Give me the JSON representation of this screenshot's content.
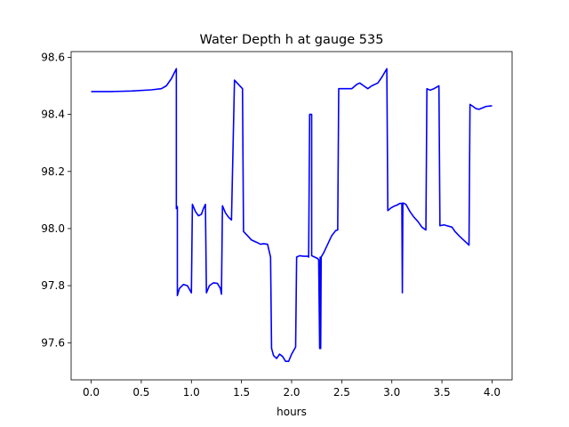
{
  "chart_data": {
    "type": "line",
    "title": "Water Depth h at gauge 535",
    "xlabel": "hours",
    "ylabel": "",
    "xlim": [
      -0.2,
      4.2
    ],
    "ylim": [
      97.47,
      98.62
    ],
    "xticks": [
      0.0,
      0.5,
      1.0,
      1.5,
      2.0,
      2.5,
      3.0,
      3.5,
      4.0
    ],
    "xtick_labels": [
      "0.0",
      "0.5",
      "1.0",
      "1.5",
      "2.0",
      "2.5",
      "3.0",
      "3.5",
      "4.0"
    ],
    "yticks": [
      97.6,
      97.8,
      98.0,
      98.2,
      98.4,
      98.6
    ],
    "ytick_labels": [
      "97.6",
      "97.8",
      "98.0",
      "98.2",
      "98.4",
      "98.6"
    ],
    "grid": false,
    "legend": "none",
    "series": [
      {
        "color": "#0000ff",
        "points": [
          [
            0.0,
            98.48
          ],
          [
            0.2,
            98.48
          ],
          [
            0.4,
            98.482
          ],
          [
            0.6,
            98.486
          ],
          [
            0.7,
            98.49
          ],
          [
            0.75,
            98.5
          ],
          [
            0.8,
            98.525
          ],
          [
            0.85,
            98.56
          ],
          [
            0.85,
            98.07
          ],
          [
            0.86,
            98.077
          ],
          [
            0.86,
            97.765
          ],
          [
            0.88,
            97.79
          ],
          [
            0.92,
            97.804
          ],
          [
            0.96,
            97.8
          ],
          [
            1.0,
            97.775
          ],
          [
            1.01,
            98.085
          ],
          [
            1.04,
            98.06
          ],
          [
            1.07,
            98.045
          ],
          [
            1.1,
            98.05
          ],
          [
            1.12,
            98.07
          ],
          [
            1.14,
            98.085
          ],
          [
            1.15,
            97.775
          ],
          [
            1.18,
            97.8
          ],
          [
            1.22,
            97.81
          ],
          [
            1.26,
            97.808
          ],
          [
            1.29,
            97.79
          ],
          [
            1.3,
            97.77
          ],
          [
            1.31,
            98.08
          ],
          [
            1.34,
            98.055
          ],
          [
            1.37,
            98.04
          ],
          [
            1.4,
            98.03
          ],
          [
            1.43,
            98.52
          ],
          [
            1.47,
            98.505
          ],
          [
            1.51,
            98.49
          ],
          [
            1.52,
            97.99
          ],
          [
            1.56,
            97.975
          ],
          [
            1.6,
            97.96
          ],
          [
            1.65,
            97.952
          ],
          [
            1.69,
            97.945
          ],
          [
            1.72,
            97.947
          ],
          [
            1.76,
            97.945
          ],
          [
            1.79,
            97.9
          ],
          [
            1.8,
            97.58
          ],
          [
            1.82,
            97.555
          ],
          [
            1.85,
            97.545
          ],
          [
            1.88,
            97.56
          ],
          [
            1.91,
            97.552
          ],
          [
            1.94,
            97.535
          ],
          [
            1.97,
            97.535
          ],
          [
            2.0,
            97.56
          ],
          [
            2.04,
            97.585
          ],
          [
            2.05,
            97.9
          ],
          [
            2.08,
            97.905
          ],
          [
            2.12,
            97.903
          ],
          [
            2.16,
            97.903
          ],
          [
            2.17,
            97.9
          ],
          [
            2.18,
            98.4
          ],
          [
            2.2,
            98.4
          ],
          [
            2.2,
            97.905
          ],
          [
            2.23,
            97.9
          ],
          [
            2.26,
            97.895
          ],
          [
            2.27,
            97.89
          ],
          [
            2.28,
            97.58
          ],
          [
            2.285,
            97.9
          ],
          [
            2.29,
            97.58
          ],
          [
            2.295,
            97.9
          ],
          [
            2.32,
            97.915
          ],
          [
            2.36,
            97.945
          ],
          [
            2.4,
            97.975
          ],
          [
            2.44,
            97.993
          ],
          [
            2.46,
            97.995
          ],
          [
            2.47,
            98.49
          ],
          [
            2.55,
            98.49
          ],
          [
            2.6,
            98.49
          ],
          [
            2.65,
            98.505
          ],
          [
            2.68,
            98.51
          ],
          [
            2.72,
            98.5
          ],
          [
            2.76,
            98.49
          ],
          [
            2.8,
            98.5
          ],
          [
            2.86,
            98.51
          ],
          [
            2.9,
            98.53
          ],
          [
            2.95,
            98.56
          ],
          [
            2.96,
            98.063
          ],
          [
            2.99,
            98.072
          ],
          [
            3.02,
            98.078
          ],
          [
            3.05,
            98.082
          ],
          [
            3.08,
            98.088
          ],
          [
            3.1,
            98.088
          ],
          [
            3.105,
            97.775
          ],
          [
            3.11,
            98.09
          ],
          [
            3.14,
            98.085
          ],
          [
            3.18,
            98.06
          ],
          [
            3.22,
            98.04
          ],
          [
            3.26,
            98.025
          ],
          [
            3.3,
            98.005
          ],
          [
            3.34,
            97.995
          ],
          [
            3.35,
            98.49
          ],
          [
            3.38,
            98.485
          ],
          [
            3.42,
            98.49
          ],
          [
            3.47,
            98.5
          ],
          [
            3.48,
            98.01
          ],
          [
            3.52,
            98.013
          ],
          [
            3.55,
            98.01
          ],
          [
            3.6,
            98.005
          ],
          [
            3.63,
            97.99
          ],
          [
            3.67,
            97.975
          ],
          [
            3.7,
            97.965
          ],
          [
            3.74,
            97.952
          ],
          [
            3.77,
            97.942
          ],
          [
            3.78,
            98.435
          ],
          [
            3.81,
            98.428
          ],
          [
            3.84,
            98.42
          ],
          [
            3.87,
            98.418
          ],
          [
            3.9,
            98.422
          ],
          [
            3.94,
            98.428
          ],
          [
            4.0,
            98.43
          ]
        ]
      }
    ]
  }
}
